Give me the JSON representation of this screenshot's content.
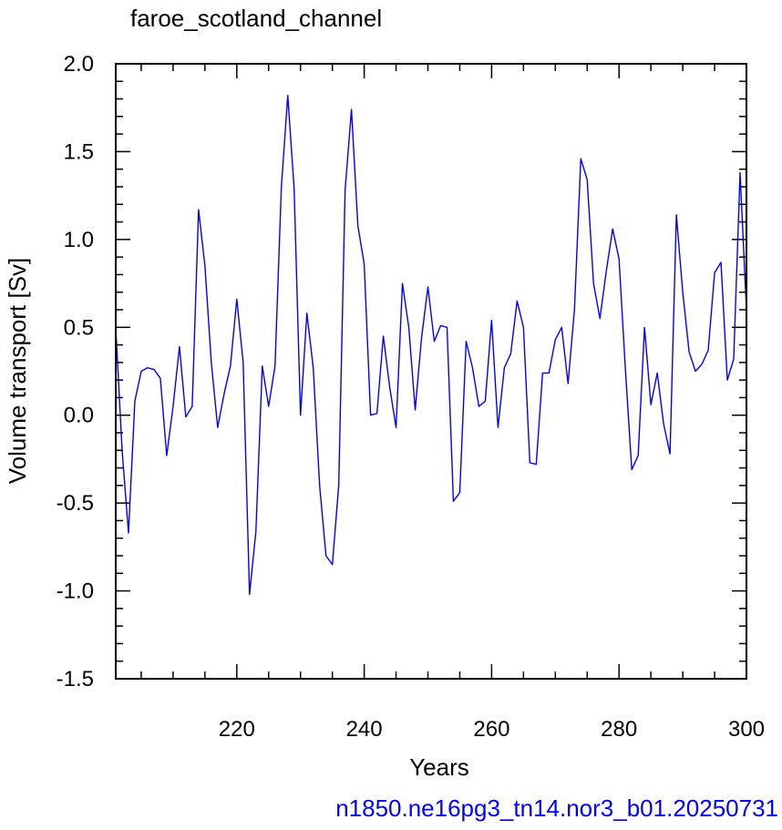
{
  "chart_data": {
    "type": "line",
    "title": "faroe_scotland_channel",
    "xlabel": "Years",
    "ylabel": "Volume transport [Sv]",
    "footer": "n1850.ne16pg3_tn14.nor3_b01.20250731",
    "xlim": [
      201,
      300
    ],
    "ylim": [
      -1.5,
      2.0
    ],
    "x_ticks": [
      220,
      240,
      260,
      280,
      300
    ],
    "x_tick_labels": [
      "220",
      "240",
      "260",
      "280",
      "300"
    ],
    "y_ticks": [
      -1.5,
      -1.0,
      -0.5,
      0.0,
      0.5,
      1.0,
      1.5,
      2.0
    ],
    "y_tick_labels": [
      "-1.5",
      "-1.0",
      "-0.5",
      "0.0",
      "0.5",
      "1.0",
      "1.5",
      "2.0"
    ],
    "grid": false,
    "series": [
      {
        "color": "#0000ff",
        "x": [
          201,
          202,
          203,
          204,
          205,
          206,
          207,
          208,
          209,
          210,
          211,
          212,
          213,
          214,
          215,
          216,
          217,
          218,
          219,
          220,
          221,
          222,
          223,
          224,
          225,
          226,
          227,
          228,
          229,
          230,
          231,
          232,
          233,
          234,
          235,
          236,
          237,
          238,
          239,
          240,
          241,
          242,
          243,
          244,
          245,
          246,
          247,
          248,
          249,
          250,
          251,
          252,
          253,
          254,
          255,
          256,
          257,
          258,
          259,
          260,
          261,
          262,
          263,
          264,
          265,
          266,
          267,
          268,
          269,
          270,
          271,
          272,
          273,
          274,
          275,
          276,
          277,
          278,
          279,
          280,
          281,
          282,
          283,
          284,
          285,
          286,
          287,
          288,
          289,
          290,
          291,
          292,
          293,
          294,
          295,
          296,
          297,
          298,
          299,
          300
        ],
        "y": [
          0.5,
          -0.2,
          -0.67,
          0.08,
          0.25,
          0.27,
          0.26,
          0.21,
          -0.23,
          0.05,
          0.39,
          -0.01,
          0.05,
          1.17,
          0.85,
          0.3,
          -0.07,
          0.12,
          0.28,
          0.66,
          0.3,
          -1.02,
          -0.66,
          0.28,
          0.05,
          0.28,
          1.3,
          1.82,
          1.29,
          0.0,
          0.58,
          0.27,
          -0.4,
          -0.8,
          -0.85,
          -0.4,
          1.28,
          1.74,
          1.08,
          0.86,
          0.0,
          0.01,
          0.45,
          0.16,
          -0.07,
          0.75,
          0.5,
          0.03,
          0.44,
          0.73,
          0.42,
          0.51,
          0.5,
          -0.49,
          -0.44,
          0.42,
          0.27,
          0.05,
          0.08,
          0.54,
          -0.07,
          0.27,
          0.35,
          0.65,
          0.5,
          -0.27,
          -0.28,
          0.24,
          0.24,
          0.43,
          0.5,
          0.18,
          0.6,
          1.46,
          1.34,
          0.75,
          0.55,
          0.82,
          1.06,
          0.89,
          0.26,
          -0.31,
          -0.23,
          0.5,
          0.06,
          0.24,
          -0.05,
          -0.22,
          1.14,
          0.7,
          0.36,
          0.25,
          0.29,
          0.37,
          0.81,
          0.87,
          0.2,
          0.32,
          1.38,
          0.6
        ]
      }
    ]
  }
}
